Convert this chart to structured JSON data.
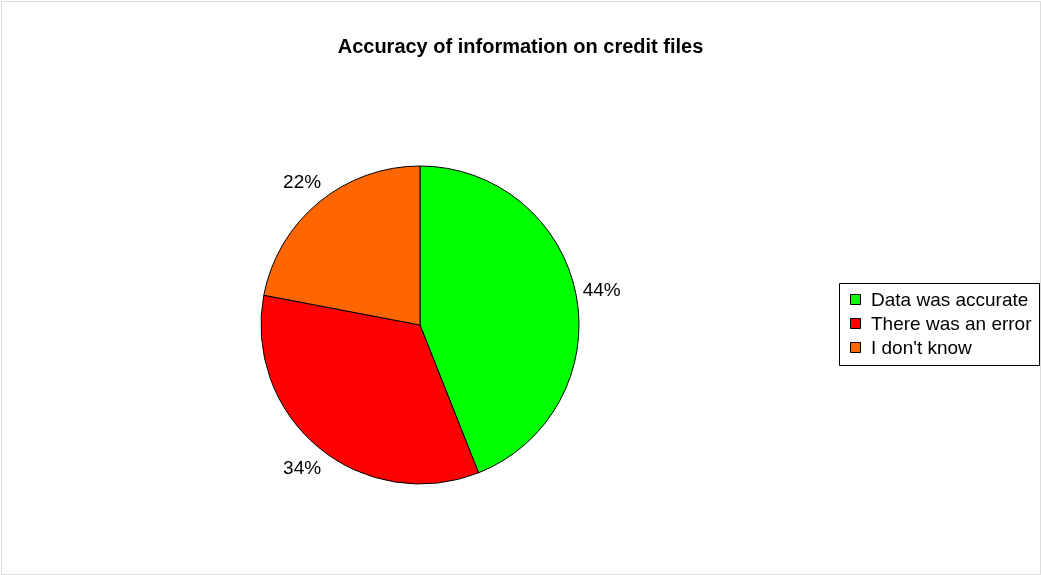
{
  "chart_data": {
    "type": "pie",
    "title": "Accuracy of information on credit files",
    "categories": [
      "Data was accurate",
      "There was an error",
      "I don't know"
    ],
    "values": [
      44,
      34,
      22
    ],
    "colors": [
      "#00ff00",
      "#ff0000",
      "#ff6600"
    ],
    "value_labels": [
      "44%",
      "34%",
      "22%"
    ],
    "legend": "right"
  }
}
